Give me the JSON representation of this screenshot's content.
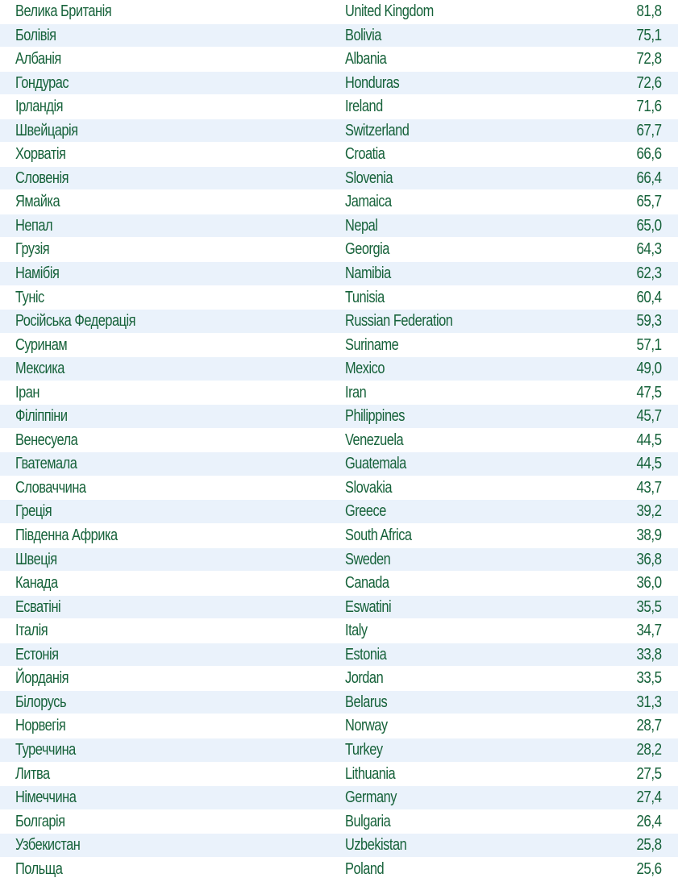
{
  "rows": [
    {
      "ua": "Велика Британія",
      "en": "United Kingdom",
      "value": "81,8"
    },
    {
      "ua": "Болівія",
      "en": "Bolivia",
      "value": "75,1"
    },
    {
      "ua": "Албанія",
      "en": "Albania",
      "value": "72,8"
    },
    {
      "ua": "Гондурас",
      "en": "Honduras",
      "value": "72,6"
    },
    {
      "ua": "Ірландія",
      "en": "Ireland",
      "value": "71,6"
    },
    {
      "ua": "Швейцарія",
      "en": "Switzerland",
      "value": "67,7"
    },
    {
      "ua": "Хорватія",
      "en": "Croatia",
      "value": "66,6"
    },
    {
      "ua": "Словенія",
      "en": "Slovenia",
      "value": "66,4"
    },
    {
      "ua": "Ямайка",
      "en": "Jamaica",
      "value": "65,7"
    },
    {
      "ua": "Непал",
      "en": "Nepal",
      "value": "65,0"
    },
    {
      "ua": "Грузія",
      "en": "Georgia",
      "value": "64,3"
    },
    {
      "ua": "Намібія",
      "en": "Namibia",
      "value": "62,3"
    },
    {
      "ua": "Туніс",
      "en": "Tunisia",
      "value": "60,4"
    },
    {
      "ua": "Російська Федерація",
      "en": "Russian Federation",
      "value": "59,3"
    },
    {
      "ua": "Суринам",
      "en": "Suriname",
      "value": "57,1"
    },
    {
      "ua": "Мексика",
      "en": "Mexico",
      "value": "49,0"
    },
    {
      "ua": "Іран",
      "en": "Iran",
      "value": "47,5"
    },
    {
      "ua": "Філіппіни",
      "en": "Philippines",
      "value": "45,7"
    },
    {
      "ua": "Венесуела",
      "en": "Venezuela",
      "value": "44,5"
    },
    {
      "ua": "Гватемала",
      "en": "Guatemala",
      "value": "44,5"
    },
    {
      "ua": "Словаччина",
      "en": "Slovakia",
      "value": "43,7"
    },
    {
      "ua": "Греція",
      "en": "Greece",
      "value": "39,2"
    },
    {
      "ua": "Південна Африка",
      "en": "South Africa",
      "value": "38,9"
    },
    {
      "ua": "Швеція",
      "en": "Sweden",
      "value": "36,8"
    },
    {
      "ua": "Канада",
      "en": "Canada",
      "value": "36,0"
    },
    {
      "ua": "Есватіні",
      "en": "Eswatini",
      "value": "35,5"
    },
    {
      "ua": "Італія",
      "en": "Italy",
      "value": "34,7"
    },
    {
      "ua": "Естонія",
      "en": "Estonia",
      "value": "33,8"
    },
    {
      "ua": "Йорданія",
      "en": "Jordan",
      "value": "33,5"
    },
    {
      "ua": "Білорусь",
      "en": "Belarus",
      "value": "31,3"
    },
    {
      "ua": "Норвегія",
      "en": "Norway",
      "value": "28,7"
    },
    {
      "ua": "Туреччина",
      "en": "Turkey",
      "value": "28,2"
    },
    {
      "ua": "Литва",
      "en": "Lithuania",
      "value": "27,5"
    },
    {
      "ua": "Німеччина",
      "en": "Germany",
      "value": "27,4"
    },
    {
      "ua": "Болгарія",
      "en": "Bulgaria",
      "value": "26,4"
    },
    {
      "ua": "Узбекистан",
      "en": "Uzbekistan",
      "value": "25,8"
    },
    {
      "ua": "Польща",
      "en": "Poland",
      "value": "25,6"
    }
  ]
}
